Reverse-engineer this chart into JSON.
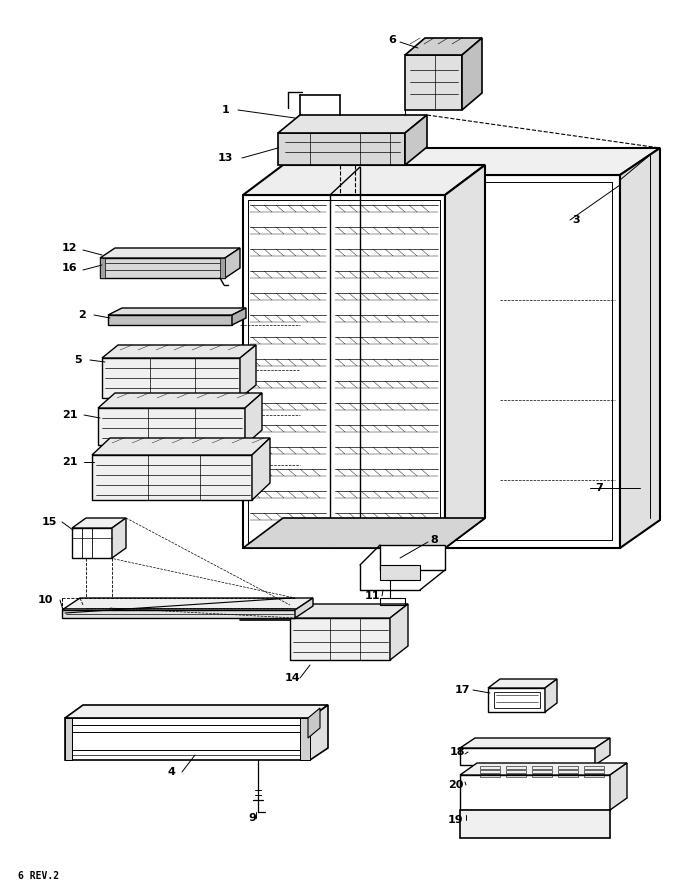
{
  "footer": "6 REV.2",
  "bg_color": "#ffffff",
  "line_color": "#000000",
  "figsize": [
    6.8,
    8.91
  ],
  "dpi": 100
}
